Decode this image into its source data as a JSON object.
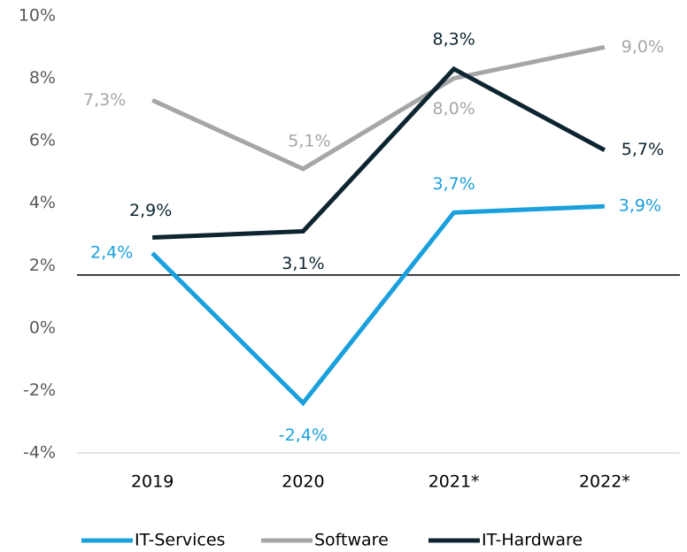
{
  "chart_data": {
    "type": "line",
    "categories": [
      "2019",
      "2020",
      "2021*",
      "2022*"
    ],
    "series": [
      {
        "name": "IT-Services",
        "color": "#1aa0dc",
        "values": [
          2.4,
          -2.4,
          3.7,
          3.9
        ],
        "value_labels": [
          "2,4%",
          "-2,4%",
          "3,7%",
          "3,9%"
        ]
      },
      {
        "name": "Software",
        "color": "#a6a6a6",
        "values": [
          7.3,
          5.1,
          8.0,
          9.0
        ],
        "value_labels": [
          "7,3%",
          "5,1%",
          "8,0%",
          "9,0%"
        ]
      },
      {
        "name": "IT-Hardware",
        "color": "#0d2530",
        "values": [
          2.9,
          3.1,
          8.3,
          5.7
        ],
        "value_labels": [
          "2,9%",
          "3,1%",
          "8,3%",
          "5,7%"
        ]
      }
    ],
    "reference_line": 1.7,
    "ylim": [
      -4,
      10
    ],
    "yticks": [
      {
        "value": -4,
        "label": "-4%"
      },
      {
        "value": -2,
        "label": "-2%"
      },
      {
        "value": 0,
        "label": "0%"
      },
      {
        "value": 2,
        "label": "2%"
      },
      {
        "value": 4,
        "label": "4%"
      },
      {
        "value": 6,
        "label": "6%"
      },
      {
        "value": 8,
        "label": "8%"
      },
      {
        "value": 10,
        "label": "10%"
      }
    ],
    "grid": false,
    "legend": "bottom"
  }
}
